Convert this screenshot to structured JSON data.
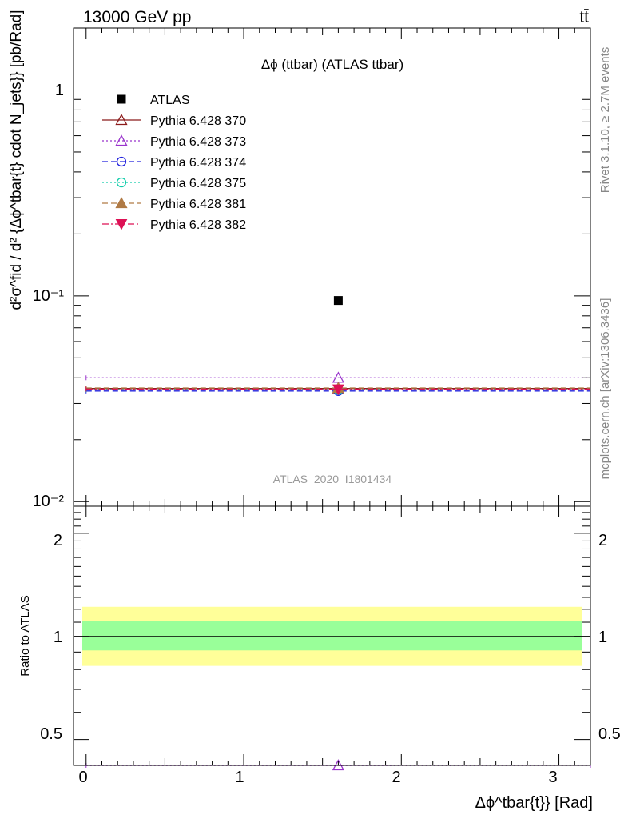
{
  "header": {
    "process": "13000 GeV pp",
    "channel": "tt̄"
  },
  "side_labels": {
    "rivet": "Rivet 3.1.10, ≥ 2.7M events",
    "source": "mcplots.cern.ch [arXiv:1306.3436]"
  },
  "chart_data": [
    {
      "type": "scatter",
      "panel": "main",
      "title": "Δϕ (ttbar) (ATLAS ttbar)",
      "watermark": "ATLAS_2020_I1801434",
      "ylabel": "d²σ^fid / d² {Δϕ^tbar{t}  cdot N_jets}} [pb/Rad]",
      "y_scale": "log",
      "ylim": [
        0.0095,
        2.0
      ],
      "xlim": [
        -0.08,
        3.2
      ],
      "y_tick_labels": [
        "1",
        "10⁻¹",
        "10⁻²"
      ],
      "legend_position": "top-left",
      "series": [
        {
          "name": "ATLAS",
          "color": "#000000",
          "marker": "square",
          "line": "none",
          "x": [
            1.6
          ],
          "y": [
            0.095
          ],
          "xerr": [
            0.0
          ]
        },
        {
          "name": "Pythia 6.428 370",
          "color": "#8b1a1a",
          "marker": "triangle-open",
          "line": "solid",
          "x": [
            1.6
          ],
          "y": [
            0.0355
          ],
          "xerr": [
            1.6
          ]
        },
        {
          "name": "Pythia 6.428 373",
          "color": "#9933cc",
          "marker": "triangle-open",
          "line": "dotted",
          "x": [
            1.6
          ],
          "y": [
            0.04
          ],
          "xerr": [
            1.6
          ]
        },
        {
          "name": "Pythia 6.428 374",
          "color": "#2222dd",
          "marker": "circle-open",
          "line": "dashed",
          "x": [
            1.6
          ],
          "y": [
            0.0345
          ],
          "xerr": [
            1.6
          ]
        },
        {
          "name": "Pythia 6.428 375",
          "color": "#11ccaa",
          "marker": "circle-open",
          "line": "dotted",
          "x": [
            1.6
          ],
          "y": [
            0.035
          ],
          "xerr": [
            1.6
          ]
        },
        {
          "name": "Pythia 6.428 381",
          "color": "#b07a45",
          "marker": "triangle",
          "line": "dashed",
          "x": [
            1.6
          ],
          "y": [
            0.0357
          ],
          "xerr": [
            1.6
          ]
        },
        {
          "name": "Pythia 6.428 382",
          "color": "#dd1155",
          "marker": "triangle-down",
          "line": "dashdot",
          "x": [
            1.6
          ],
          "y": [
            0.0352
          ],
          "xerr": [
            1.6
          ]
        }
      ]
    },
    {
      "type": "scatter",
      "panel": "ratio",
      "ylabel": "Ratio to ATLAS",
      "xlabel": "Δϕ^tbar{t}} [Rad]",
      "y_scale": "log",
      "ylim": [
        0.42,
        2.4
      ],
      "xlim": [
        -0.08,
        3.2
      ],
      "x_tick_labels": [
        "0",
        "1",
        "2",
        "3"
      ],
      "y_tick_labels": [
        "0.5",
        "1",
        "2"
      ],
      "bands": [
        {
          "name": "total uncertainty",
          "color": "#ffff99",
          "lo": 0.82,
          "hi": 1.22
        },
        {
          "name": "statistical uncertainty",
          "color": "#99ff99",
          "lo": 0.91,
          "hi": 1.11
        }
      ],
      "reference": 1.0,
      "series": [
        {
          "name": "Pythia 6.428 373",
          "color": "#9933cc",
          "marker": "triangle-open",
          "line": "dotted",
          "x": [
            1.6
          ],
          "y": [
            0.42
          ],
          "xerr": [
            1.6
          ]
        }
      ]
    }
  ]
}
